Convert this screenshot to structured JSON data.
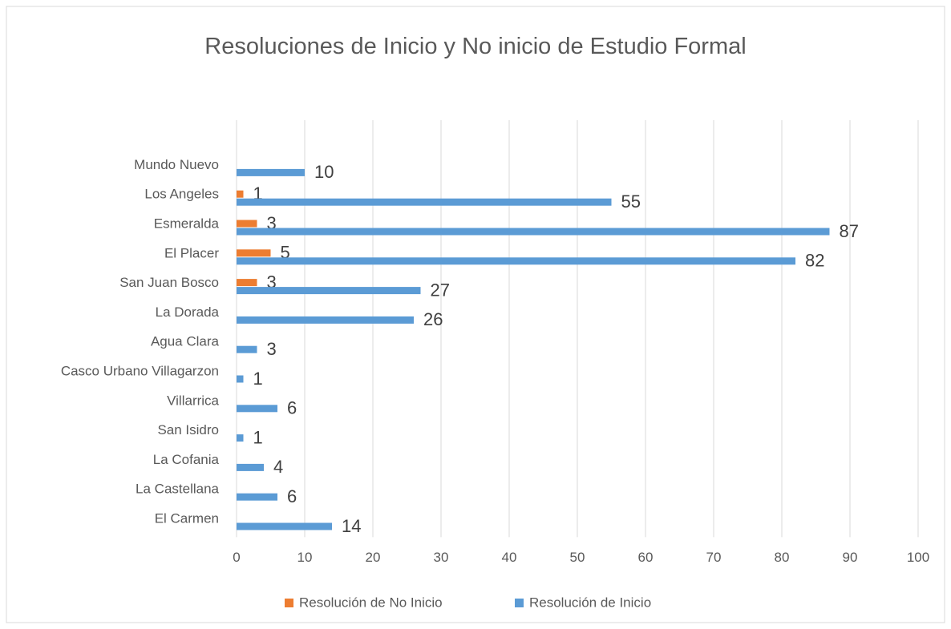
{
  "chart_data": {
    "type": "bar",
    "orientation": "horizontal",
    "title": "Resoluciones  de Inicio y No inicio  de Estudio Formal",
    "categories": [
      "Mundo Nuevo",
      "Los Angeles",
      "Esmeralda",
      "El Placer",
      "San Juan Bosco",
      "La Dorada",
      "Agua Clara",
      "Casco Urbano Villagarzon",
      "Villarrica",
      "San Isidro",
      "La Cofania",
      "La Castellana",
      "El Carmen"
    ],
    "series": [
      {
        "name": "Resolución de No Inicio",
        "color": "#ed7d31",
        "values": [
          null,
          1,
          3,
          5,
          3,
          null,
          null,
          null,
          null,
          null,
          null,
          null,
          null
        ]
      },
      {
        "name": "Resolución de Inicio",
        "color": "#5b9bd5",
        "values": [
          10,
          55,
          87,
          82,
          27,
          26,
          3,
          1,
          6,
          1,
          4,
          6,
          14
        ]
      }
    ],
    "xlim": [
      0,
      100
    ],
    "xticks": [
      0,
      10,
      20,
      30,
      40,
      50,
      60,
      70,
      80,
      90,
      100
    ],
    "grid": true,
    "legend": "bottom"
  }
}
